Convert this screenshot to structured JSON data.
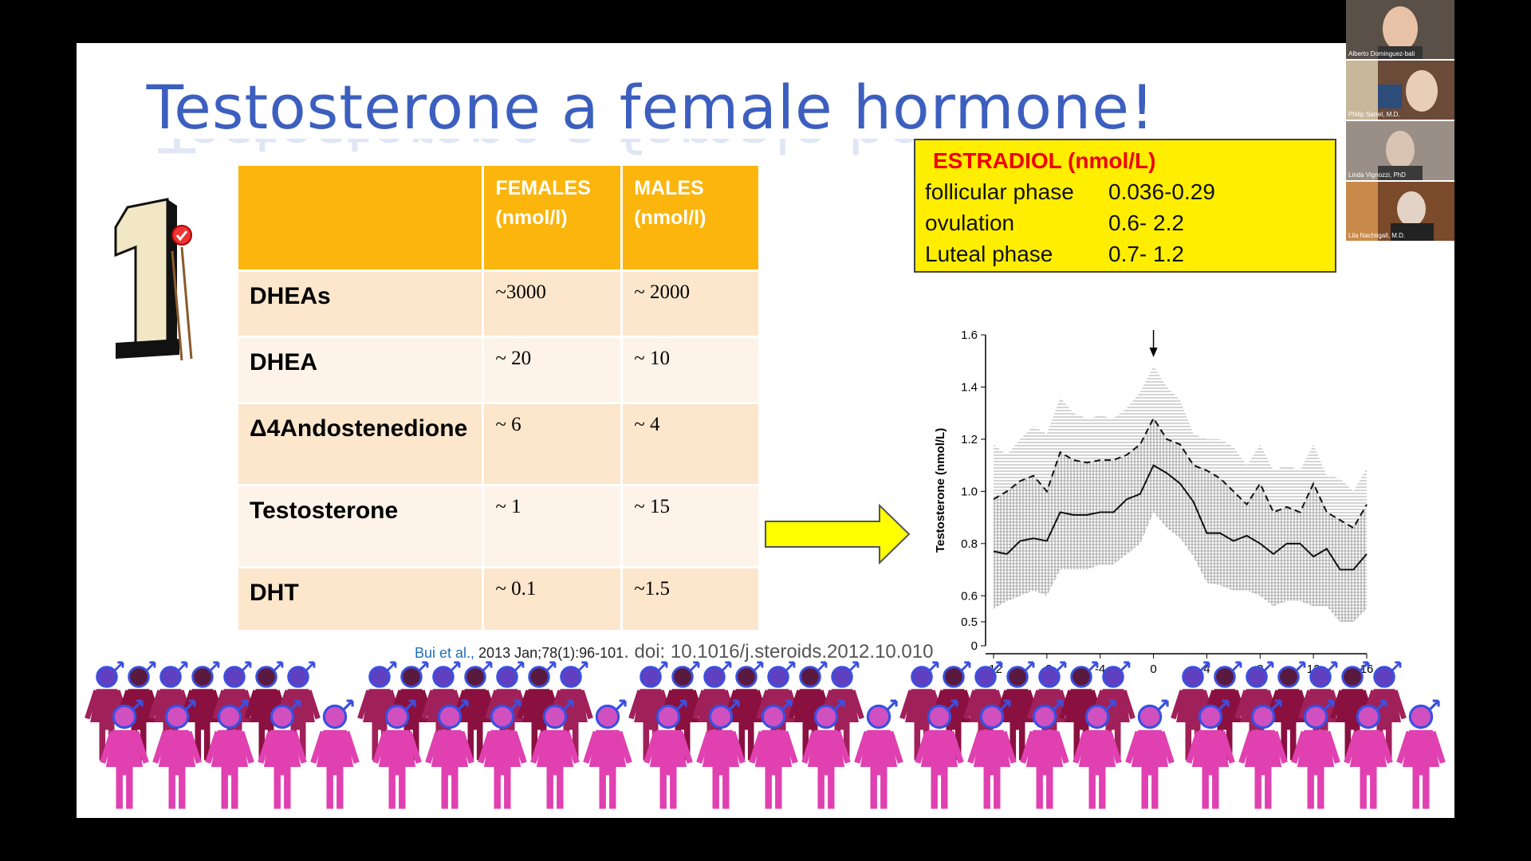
{
  "slide": {
    "title": "Testosterone a female hormone!",
    "table": {
      "headers": [
        "",
        "FEMALES (nmol/l)",
        "MALES (nmol/l)"
      ],
      "rows": [
        {
          "label": "DHEAs",
          "female": "~3000",
          "male": "~ 2000"
        },
        {
          "label": "DHEA",
          "female": "~ 20",
          "male": "~ 10"
        },
        {
          "label": "Δ4Andostenedione",
          "female": "~ 6",
          "male": "~ 4"
        },
        {
          "label": "Testosterone",
          "female": "~ 1",
          "male": "~ 15"
        },
        {
          "label": "DHT",
          "female": "~ 0.1",
          "male": "~1.5"
        }
      ]
    },
    "estradiol_box": {
      "heading": "ESTRADIOL (nmol/L)",
      "rows": [
        {
          "phase": "follicular phase",
          "value": "0.036-0.29"
        },
        {
          "phase": "ovulation",
          "value": "0.6-   2.2"
        },
        {
          "phase": "Luteal phase",
          "value": "0.7- 1.2"
        }
      ]
    },
    "citation": {
      "authors": "Bui et al.,",
      "ref": " 2013 Jan;78(1):96-101",
      "doi": ". doi: 10.1016/j.steroids.2012.10.010"
    },
    "colors": {
      "title": "#3c5fbf",
      "header": "#fbb50d",
      "estradiol_bg": "#ffee00",
      "female_figure": "#e040b0",
      "male_figure": "#8a1040"
    }
  },
  "chart_data": {
    "type": "line",
    "ylabel": "Testosterone (nmol/L)",
    "xlabel": "",
    "xticks": [
      -12,
      -8,
      -4,
      0,
      4,
      8,
      12,
      16
    ],
    "yticks": [
      "0",
      "0.5",
      "0.6",
      "0.8",
      "1.0",
      "1.2",
      "1.4",
      "1.6"
    ],
    "ylim": [
      0,
      1.6
    ],
    "xlim": [
      -12,
      16
    ],
    "marker_x": 0,
    "x": [
      -12,
      -11,
      -10,
      -9,
      -8,
      -7,
      -6,
      -5,
      -4,
      -3,
      -2,
      -1,
      0,
      1,
      2,
      3,
      4,
      5,
      6,
      7,
      8,
      9,
      10,
      11,
      12,
      13,
      14,
      15,
      16
    ],
    "series": [
      {
        "style": "dashed",
        "values": [
          0.97,
          1.0,
          1.04,
          1.06,
          1.0,
          1.15,
          1.12,
          1.11,
          1.12,
          1.12,
          1.14,
          1.18,
          1.28,
          1.2,
          1.18,
          1.1,
          1.08,
          1.05,
          1.0,
          0.95,
          1.03,
          0.92,
          0.94,
          0.92,
          1.03,
          0.92,
          0.89,
          0.86,
          0.95
        ]
      },
      {
        "style": "solid",
        "values": [
          0.77,
          0.76,
          0.81,
          0.82,
          0.81,
          0.92,
          0.91,
          0.91,
          0.92,
          0.92,
          0.97,
          0.99,
          1.1,
          1.07,
          1.03,
          0.96,
          0.84,
          0.84,
          0.81,
          0.83,
          0.8,
          0.76,
          0.8,
          0.8,
          0.75,
          0.78,
          0.7,
          0.7,
          0.76
        ]
      }
    ],
    "upper_band": [
      1.18,
      1.14,
      1.2,
      1.25,
      1.22,
      1.36,
      1.3,
      1.28,
      1.29,
      1.28,
      1.32,
      1.38,
      1.48,
      1.4,
      1.35,
      1.22,
      1.2,
      1.2,
      1.17,
      1.1,
      1.18,
      1.08,
      1.1,
      1.08,
      1.18,
      1.06,
      1.05,
      1.0,
      1.09
    ],
    "lower_band": [
      0.55,
      0.58,
      0.6,
      0.62,
      0.6,
      0.7,
      0.7,
      0.7,
      0.72,
      0.72,
      0.76,
      0.8,
      0.92,
      0.86,
      0.82,
      0.75,
      0.65,
      0.64,
      0.62,
      0.62,
      0.6,
      0.56,
      0.58,
      0.58,
      0.56,
      0.56,
      0.5,
      0.5,
      0.55
    ]
  },
  "video_panel": {
    "participants": [
      {
        "name": "Alberto Dominguez-bali"
      },
      {
        "name": "Philip Sarrel, M.D."
      },
      {
        "name": "Linda Vignozzi, PhD"
      },
      {
        "name": "Lila Nachtigall, M.D."
      }
    ]
  }
}
